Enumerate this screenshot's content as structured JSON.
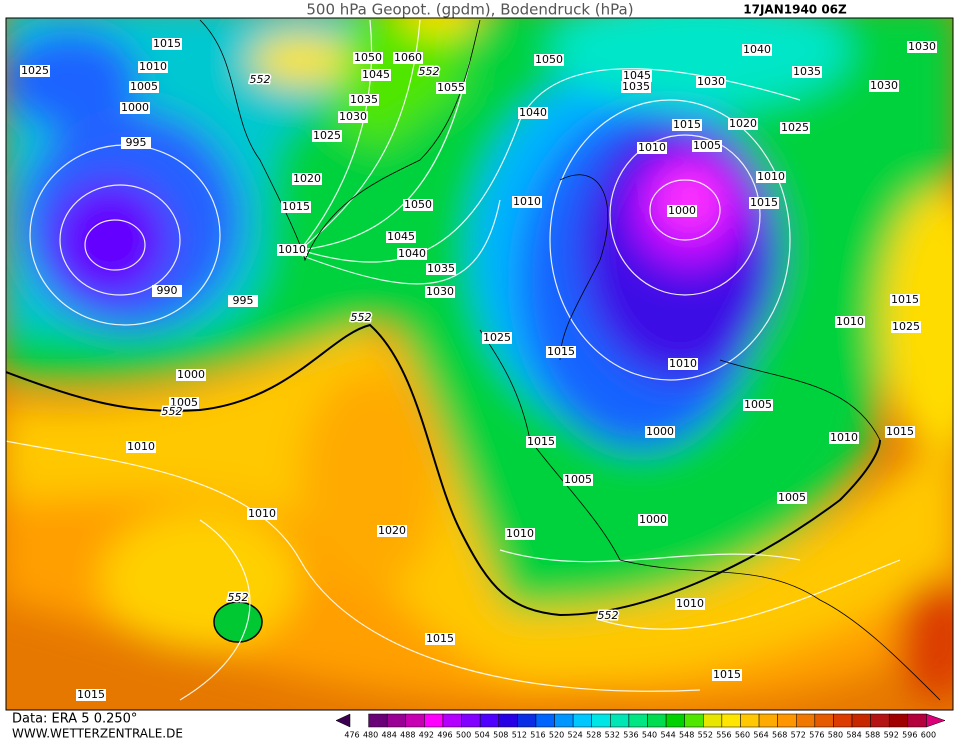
{
  "header": {
    "title": "500 hPa Geopot. (gpdm), Bodendruck (hPa)",
    "date": "17JAN1940 06Z"
  },
  "footer": {
    "data": "Data: ERA 5 0.250°",
    "site": "WWW.WETTERZENTRALE.DE"
  },
  "isobar_labels": [
    1015,
    1010,
    1025,
    1005,
    1000,
    995,
    990,
    995,
    1000,
    1005,
    1010,
    1050,
    1060,
    1045,
    1055,
    1035,
    1030,
    1025,
    1020,
    1015,
    1010,
    1050,
    1045,
    1040,
    1035,
    1030,
    1050,
    1040,
    1045,
    1035,
    1030,
    1040,
    1035,
    1030,
    1030,
    1015,
    1020,
    1025,
    1010,
    1005,
    1010,
    1000,
    1015,
    1010,
    1025,
    1015,
    1010,
    1010,
    1015,
    1025,
    1005,
    1000,
    1015,
    1010,
    1015,
    1005,
    1005,
    1000,
    1010,
    1010,
    1020,
    1015,
    1010,
    1015,
    1015
  ],
  "contour_labels": [
    552,
    552,
    552,
    552,
    552,
    552
  ],
  "colorbar": {
    "ticks": [
      476,
      480,
      484,
      488,
      492,
      496,
      500,
      504,
      508,
      512,
      516,
      520,
      524,
      528,
      532,
      536,
      540,
      544,
      548,
      552,
      556,
      560,
      564,
      568,
      572,
      576,
      580,
      584,
      588,
      592,
      596,
      600
    ],
    "colors": [
      "#3c0050",
      "#6a0078",
      "#9a0096",
      "#c800b4",
      "#ff00ff",
      "#b400ff",
      "#8200ff",
      "#5000ff",
      "#2800e6",
      "#0a2de6",
      "#0064ff",
      "#0096ff",
      "#00c8ff",
      "#00e6e6",
      "#00e6b4",
      "#00e682",
      "#00dc50",
      "#00d200",
      "#50e600",
      "#e6e600",
      "#ffe600",
      "#ffc800",
      "#ffaa00",
      "#ff9600",
      "#f07800",
      "#e65a00",
      "#dc3c00",
      "#c82800",
      "#b41414",
      "#a00000",
      "#b4003c",
      "#dc0078"
    ]
  }
}
